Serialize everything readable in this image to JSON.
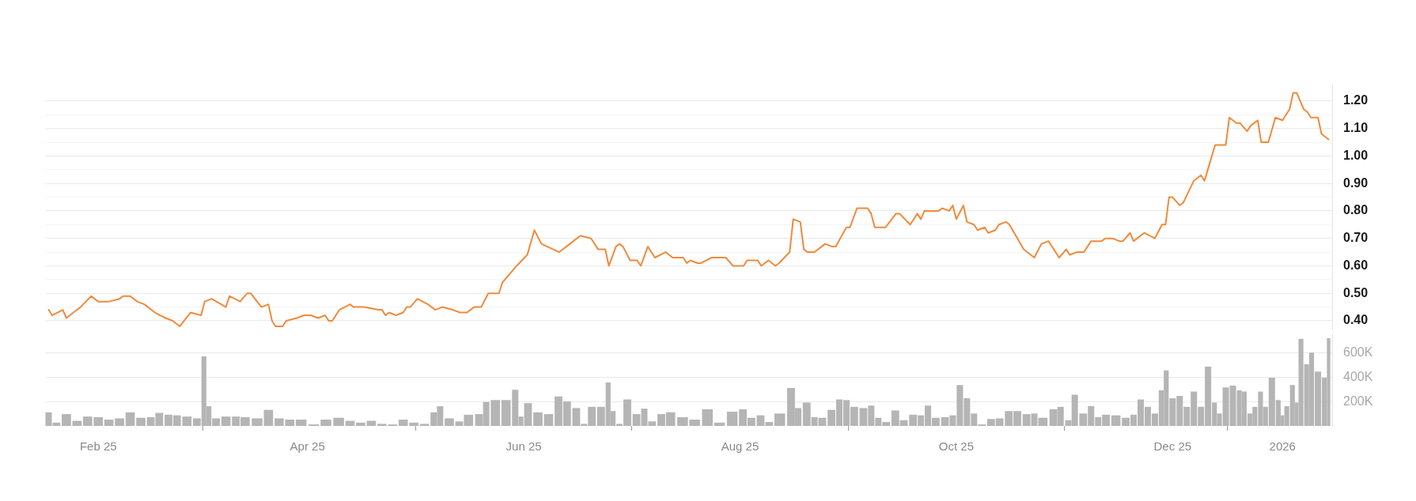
{
  "chart_data": [
    {
      "type": "line",
      "color": "#f08a3c",
      "grid": "y",
      "tick_labels": "y",
      "xlim": [
        "2025-01-17",
        "2026-01-15"
      ],
      "ylim": [
        0.37,
        1.26
      ],
      "yticks": [
        {
          "value": 0.4,
          "label": "0.40"
        },
        {
          "value": 0.45,
          "label": null
        },
        {
          "value": 0.5,
          "label": "0.50"
        },
        {
          "value": 0.55,
          "label": null
        },
        {
          "value": 0.6,
          "label": "0.60"
        },
        {
          "value": 0.65,
          "label": null
        },
        {
          "value": 0.7,
          "label": "0.70"
        },
        {
          "value": 0.75,
          "label": null
        },
        {
          "value": 0.8,
          "label": "0.80"
        },
        {
          "value": 0.85,
          "label": null
        },
        {
          "value": 0.9,
          "label": "0.90"
        },
        {
          "value": 0.95,
          "label": null
        },
        {
          "value": 1.0,
          "label": "1.00"
        },
        {
          "value": 1.05,
          "label": null
        },
        {
          "value": 1.1,
          "label": "1.10"
        },
        {
          "value": 1.15,
          "label": null
        },
        {
          "value": 1.2,
          "label": "1.20"
        }
      ],
      "x": [
        "2025-01-18",
        "2025-01-19",
        "2025-01-22",
        "2025-01-23",
        "2025-01-26",
        "2025-01-27",
        "2025-01-30",
        "2025-02-01",
        "2025-02-04",
        "2025-02-07",
        "2025-02-08",
        "2025-02-10",
        "2025-02-12",
        "2025-02-14",
        "2025-02-17",
        "2025-02-20",
        "2025-02-22",
        "2025-02-24",
        "2025-02-27",
        "2025-03-02",
        "2025-03-03",
        "2025-03-05",
        "2025-03-09",
        "2025-03-10",
        "2025-03-13",
        "2025-03-15",
        "2025-03-16",
        "2025-03-19",
        "2025-03-21",
        "2025-03-22",
        "2025-03-23",
        "2025-03-25",
        "2025-03-26",
        "2025-03-29",
        "2025-03-31",
        "2025-04-02",
        "2025-04-04",
        "2025-04-06",
        "2025-04-07",
        "2025-04-08",
        "2025-04-10",
        "2025-04-13",
        "2025-04-14",
        "2025-04-17",
        "2025-04-21",
        "2025-04-22",
        "2025-04-23",
        "2025-04-24",
        "2025-04-26",
        "2025-04-28",
        "2025-04-29",
        "2025-04-30",
        "2025-05-02",
        "2025-05-05",
        "2025-05-07",
        "2025-05-09",
        "2025-05-12",
        "2025-05-14",
        "2025-05-16",
        "2025-05-18",
        "2025-05-20",
        "2025-05-22",
        "2025-05-25",
        "2025-05-26",
        "2025-05-30",
        "2025-06-02",
        "2025-06-04",
        "2025-06-06",
        "2025-06-11",
        "2025-06-13",
        "2025-06-15",
        "2025-06-17",
        "2025-06-20",
        "2025-06-22",
        "2025-06-24",
        "2025-06-25",
        "2025-06-27",
        "2025-06-28",
        "2025-06-29",
        "2025-07-01",
        "2025-07-03",
        "2025-07-04",
        "2025-07-06",
        "2025-07-08",
        "2025-07-11",
        "2025-07-13",
        "2025-07-16",
        "2025-07-17",
        "2025-07-18",
        "2025-07-20",
        "2025-07-21",
        "2025-07-24",
        "2025-07-28",
        "2025-07-30",
        "2025-08-02",
        "2025-08-03",
        "2025-08-06",
        "2025-08-07",
        "2025-08-09",
        "2025-08-11",
        "2025-08-12",
        "2025-08-15",
        "2025-08-16",
        "2025-08-18",
        "2025-08-19",
        "2025-08-20",
        "2025-08-22",
        "2025-08-25",
        "2025-08-27",
        "2025-08-28",
        "2025-08-31",
        "2025-09-01",
        "2025-09-03",
        "2025-09-06",
        "2025-09-07",
        "2025-09-08",
        "2025-09-11",
        "2025-09-14",
        "2025-09-15",
        "2025-09-18",
        "2025-09-20",
        "2025-09-21",
        "2025-09-22",
        "2025-09-26",
        "2025-09-27",
        "2025-09-29",
        "2025-09-30",
        "2025-10-01",
        "2025-10-03",
        "2025-10-04",
        "2025-10-06",
        "2025-10-07",
        "2025-10-09",
        "2025-10-10",
        "2025-10-12",
        "2025-10-13",
        "2025-10-15",
        "2025-10-16",
        "2025-10-20",
        "2025-10-21",
        "2025-10-23",
        "2025-10-25",
        "2025-10-27",
        "2025-10-30",
        "2025-11-01",
        "2025-11-02",
        "2025-11-04",
        "2025-11-05",
        "2025-11-06",
        "2025-11-08",
        "2025-11-10",
        "2025-11-11",
        "2025-11-12",
        "2025-11-14",
        "2025-11-16",
        "2025-11-17",
        "2025-11-19",
        "2025-11-20",
        "2025-11-23",
        "2025-11-26",
        "2025-11-28",
        "2025-11-29",
        "2025-11-30",
        "2025-12-01",
        "2025-12-03",
        "2025-12-04",
        "2025-12-07",
        "2025-12-09",
        "2025-12-10",
        "2025-12-13",
        "2025-12-14",
        "2025-12-16",
        "2025-12-17",
        "2025-12-19",
        "2025-12-20",
        "2025-12-22",
        "2025-12-23",
        "2025-12-25",
        "2025-12-26",
        "2025-12-28",
        "2025-12-30",
        "2026-01-01",
        "2026-01-03",
        "2026-01-04",
        "2026-01-05",
        "2026-01-07",
        "2026-01-08",
        "2026-01-09",
        "2026-01-11",
        "2026-01-12",
        "2026-01-14"
      ],
      "values": [
        0.44,
        0.42,
        0.44,
        0.41,
        0.44,
        0.45,
        0.49,
        0.47,
        0.47,
        0.48,
        0.49,
        0.49,
        0.47,
        0.46,
        0.43,
        0.41,
        0.4,
        0.38,
        0.43,
        0.42,
        0.47,
        0.48,
        0.45,
        0.49,
        0.47,
        0.5,
        0.5,
        0.45,
        0.46,
        0.4,
        0.38,
        0.38,
        0.4,
        0.41,
        0.42,
        0.42,
        0.41,
        0.42,
        0.4,
        0.4,
        0.44,
        0.46,
        0.45,
        0.45,
        0.44,
        0.44,
        0.42,
        0.43,
        0.42,
        0.43,
        0.45,
        0.45,
        0.48,
        0.46,
        0.44,
        0.45,
        0.44,
        0.43,
        0.43,
        0.45,
        0.45,
        0.5,
        0.5,
        0.54,
        0.6,
        0.64,
        0.73,
        0.68,
        0.65,
        0.67,
        0.69,
        0.71,
        0.7,
        0.66,
        0.66,
        0.6,
        0.67,
        0.68,
        0.67,
        0.62,
        0.62,
        0.6,
        0.67,
        0.63,
        0.65,
        0.63,
        0.63,
        0.61,
        0.62,
        0.61,
        0.61,
        0.63,
        0.63,
        0.6,
        0.6,
        0.62,
        0.62,
        0.6,
        0.62,
        0.6,
        0.61,
        0.65,
        0.77,
        0.76,
        0.66,
        0.65,
        0.65,
        0.68,
        0.67,
        0.67,
        0.74,
        0.74,
        0.81,
        0.81,
        0.79,
        0.74,
        0.74,
        0.79,
        0.79,
        0.75,
        0.79,
        0.77,
        0.8,
        0.8,
        0.81,
        0.8,
        0.82,
        0.77,
        0.82,
        0.76,
        0.75,
        0.73,
        0.74,
        0.72,
        0.73,
        0.75,
        0.76,
        0.75,
        0.66,
        0.65,
        0.63,
        0.68,
        0.69,
        0.63,
        0.66,
        0.64,
        0.65,
        0.65,
        0.65,
        0.69,
        0.69,
        0.69,
        0.7,
        0.7,
        0.69,
        0.69,
        0.72,
        0.69,
        0.72,
        0.7,
        0.75,
        0.75,
        0.85,
        0.85,
        0.82,
        0.83,
        0.91,
        0.93,
        0.91,
        1.04,
        1.04,
        1.04,
        1.14,
        1.12,
        1.12,
        1.09,
        1.11,
        1.13,
        1.05,
        1.05,
        1.14,
        1.13,
        1.17,
        1.23,
        1.23,
        1.17,
        1.16,
        1.14,
        1.14,
        1.08,
        1.06
      ]
    },
    {
      "type": "bar",
      "color": "#b5b5b5",
      "grid": "y",
      "xlim": [
        "2025-01-17",
        "2026-01-15"
      ],
      "xticks": [
        {
          "value": "2025-02-01",
          "label": "Feb 25"
        },
        {
          "value": "2025-04-01",
          "label": "Apr 25"
        },
        {
          "value": "2025-06-01",
          "label": "Jun 25"
        },
        {
          "value": "2025-08-01",
          "label": "Aug 25"
        },
        {
          "value": "2025-10-01",
          "label": "Oct 25"
        },
        {
          "value": "2025-12-01",
          "label": "Dec 25"
        },
        {
          "value": "2026-01-01",
          "label": "2026"
        }
      ],
      "ylim": [
        0,
        750000
      ],
      "yticks": [
        {
          "value": 200000,
          "label": "200K"
        },
        {
          "value": 400000,
          "label": "400K"
        },
        {
          "value": 600000,
          "label": "600K"
        }
      ],
      "x": [
        "2025-01-18",
        "2025-01-20",
        "2025-01-23",
        "2025-01-26",
        "2025-01-29",
        "2025-02-01",
        "2025-02-04",
        "2025-02-07",
        "2025-02-10",
        "2025-02-13",
        "2025-02-16",
        "2025-02-18",
        "2025-02-21",
        "2025-02-23",
        "2025-02-26",
        "2025-03-01",
        "2025-03-03",
        "2025-03-04",
        "2025-03-06",
        "2025-03-09",
        "2025-03-12",
        "2025-03-14",
        "2025-03-18",
        "2025-03-21",
        "2025-03-24",
        "2025-03-27",
        "2025-03-30",
        "2025-04-03",
        "2025-04-06",
        "2025-04-10",
        "2025-04-13",
        "2025-04-16",
        "2025-04-19",
        "2025-04-22",
        "2025-04-25",
        "2025-04-28",
        "2025-05-01",
        "2025-05-04",
        "2025-05-07",
        "2025-05-08",
        "2025-05-11",
        "2025-05-14",
        "2025-05-16",
        "2025-05-20",
        "2025-05-21",
        "2025-05-24",
        "2025-05-27",
        "2025-05-30",
        "2025-05-31",
        "2025-06-02",
        "2025-06-05",
        "2025-06-08",
        "2025-06-11",
        "2025-06-13",
        "2025-06-16",
        "2025-06-18",
        "2025-06-20",
        "2025-06-23",
        "2025-06-25",
        "2025-06-26",
        "2025-06-28",
        "2025-06-30",
        "2025-07-03",
        "2025-07-05",
        "2025-07-07",
        "2025-07-10",
        "2025-07-12",
        "2025-07-16",
        "2025-07-19",
        "2025-07-23",
        "2025-07-26",
        "2025-07-30",
        "2025-08-02",
        "2025-08-04",
        "2025-08-07",
        "2025-08-09",
        "2025-08-12",
        "2025-08-16",
        "2025-08-17",
        "2025-08-20",
        "2025-08-22",
        "2025-08-24",
        "2025-08-27",
        "2025-08-29",
        "2025-08-31",
        "2025-09-02",
        "2025-09-05",
        "2025-09-07",
        "2025-09-09",
        "2025-09-11",
        "2025-09-14",
        "2025-09-16",
        "2025-09-19",
        "2025-09-21",
        "2025-09-23",
        "2025-09-25",
        "2025-09-28",
        "2025-09-30",
        "2025-10-02",
        "2025-10-04",
        "2025-10-06",
        "2025-10-08",
        "2025-10-11",
        "2025-10-13",
        "2025-10-16",
        "2025-10-18",
        "2025-10-21",
        "2025-10-23",
        "2025-10-25",
        "2025-10-29",
        "2025-10-30",
        "2025-11-02",
        "2025-11-03",
        "2025-11-06",
        "2025-11-08",
        "2025-11-10",
        "2025-11-12",
        "2025-11-15",
        "2025-11-18",
        "2025-11-20",
        "2025-11-22",
        "2025-11-24",
        "2025-11-26",
        "2025-11-28",
        "2025-11-29",
        "2025-12-01",
        "2025-12-03",
        "2025-12-05",
        "2025-12-07",
        "2025-12-09",
        "2025-12-11",
        "2025-12-13",
        "2025-12-14",
        "2025-12-16",
        "2025-12-18",
        "2025-12-20",
        "2025-12-21",
        "2025-12-23",
        "2025-12-24",
        "2025-12-26",
        "2025-12-27",
        "2025-12-29",
        "2025-12-31",
        "2026-01-01",
        "2026-01-02",
        "2026-01-04",
        "2026-01-05",
        "2026-01-06",
        "2026-01-08",
        "2026-01-09",
        "2026-01-11",
        "2026-01-13",
        "2026-01-14"
      ],
      "values": [
        110000,
        25000,
        95000,
        40000,
        75000,
        70000,
        50000,
        60000,
        110000,
        65000,
        70000,
        105000,
        90000,
        85000,
        75000,
        60000,
        570000,
        160000,
        60000,
        75000,
        75000,
        70000,
        60000,
        130000,
        60000,
        50000,
        50000,
        10000,
        50000,
        65000,
        40000,
        25000,
        40000,
        15000,
        10000,
        50000,
        25000,
        15000,
        110000,
        160000,
        60000,
        35000,
        90000,
        95000,
        195000,
        210000,
        210000,
        295000,
        75000,
        185000,
        110000,
        95000,
        240000,
        200000,
        145000,
        15000,
        155000,
        155000,
        355000,
        120000,
        15000,
        215000,
        95000,
        140000,
        35000,
        95000,
        110000,
        70000,
        50000,
        135000,
        25000,
        115000,
        135000,
        65000,
        85000,
        30000,
        100000,
        310000,
        145000,
        190000,
        70000,
        65000,
        130000,
        215000,
        210000,
        155000,
        145000,
        165000,
        65000,
        30000,
        125000,
        45000,
        90000,
        85000,
        165000,
        65000,
        70000,
        85000,
        335000,
        225000,
        100000,
        10000,
        55000,
        60000,
        120000,
        120000,
        95000,
        100000,
        65000,
        135000,
        155000,
        45000,
        255000,
        100000,
        160000,
        70000,
        90000,
        85000,
        65000,
        90000,
        215000,
        155000,
        100000,
        290000,
        455000,
        225000,
        245000,
        155000,
        280000,
        155000,
        485000,
        190000,
        100000,
        315000,
        330000,
        290000,
        280000,
        100000,
        155000,
        280000,
        155000,
        395000,
        210000,
        85000,
        160000,
        335000,
        190000,
        715000,
        505000,
        600000,
        445000,
        395000,
        720000
      ]
    }
  ]
}
